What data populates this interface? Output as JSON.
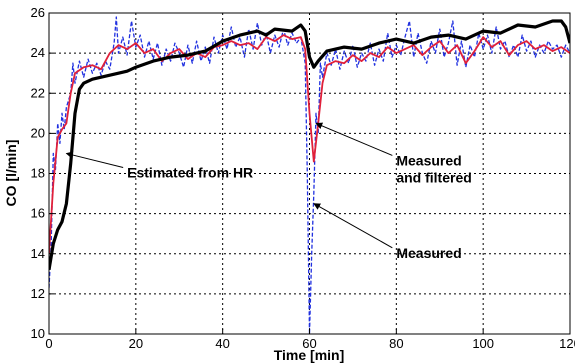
{
  "chart_data": {
    "type": "line",
    "title": "",
    "xlabel": "Time [min]",
    "ylabel": "CO [l/min]",
    "xlim": [
      0,
      120
    ],
    "ylim": [
      10,
      26
    ],
    "xticks": [
      "0",
      "20",
      "40",
      "60",
      "80",
      "100",
      "120"
    ],
    "yticks": [
      "10",
      "12",
      "14",
      "16",
      "18",
      "20",
      "22",
      "24",
      "26"
    ],
    "grid": true,
    "series": [
      {
        "name": "Estimated from HR",
        "color": "#000000",
        "style": "solid-thick",
        "points": [
          [
            0,
            13.2
          ],
          [
            1,
            14.5
          ],
          [
            2,
            15.2
          ],
          [
            3,
            15.6
          ],
          [
            4,
            16.5
          ],
          [
            5,
            18.5
          ],
          [
            6,
            21.0
          ],
          [
            7,
            22.2
          ],
          [
            8,
            22.5
          ],
          [
            10,
            22.7
          ],
          [
            12,
            22.8
          ],
          [
            14,
            22.9
          ],
          [
            16,
            23.0
          ],
          [
            18,
            23.1
          ],
          [
            20,
            23.3
          ],
          [
            24,
            23.6
          ],
          [
            28,
            23.8
          ],
          [
            32,
            23.9
          ],
          [
            36,
            24.1
          ],
          [
            40,
            24.6
          ],
          [
            44,
            24.9
          ],
          [
            48,
            25.1
          ],
          [
            50,
            24.9
          ],
          [
            52,
            25.2
          ],
          [
            56,
            25.1
          ],
          [
            58,
            25.4
          ],
          [
            59,
            25.1
          ],
          [
            60,
            23.8
          ],
          [
            61,
            23.3
          ],
          [
            62,
            23.6
          ],
          [
            64,
            24.1
          ],
          [
            68,
            24.3
          ],
          [
            72,
            24.2
          ],
          [
            76,
            24.5
          ],
          [
            80,
            24.7
          ],
          [
            84,
            24.5
          ],
          [
            88,
            24.8
          ],
          [
            92,
            24.9
          ],
          [
            96,
            24.7
          ],
          [
            100,
            25.1
          ],
          [
            104,
            25.0
          ],
          [
            108,
            25.4
          ],
          [
            112,
            25.3
          ],
          [
            116,
            25.6
          ],
          [
            118,
            25.6
          ],
          [
            119,
            25.3
          ],
          [
            120,
            24.5
          ]
        ]
      },
      {
        "name": "Measured and filtered",
        "color": "#e0203a",
        "style": "solid",
        "points": [
          [
            0,
            14.0
          ],
          [
            1,
            17.5
          ],
          [
            2,
            19.8
          ],
          [
            3,
            20.2
          ],
          [
            4,
            20.5
          ],
          [
            5,
            22.0
          ],
          [
            6,
            23.0
          ],
          [
            8,
            23.3
          ],
          [
            10,
            23.4
          ],
          [
            12,
            23.2
          ],
          [
            14,
            24.0
          ],
          [
            16,
            24.4
          ],
          [
            18,
            24.2
          ],
          [
            20,
            24.5
          ],
          [
            22,
            24.0
          ],
          [
            24,
            24.2
          ],
          [
            26,
            23.6
          ],
          [
            28,
            24.0
          ],
          [
            30,
            24.2
          ],
          [
            32,
            23.7
          ],
          [
            34,
            24.0
          ],
          [
            36,
            23.8
          ],
          [
            38,
            24.3
          ],
          [
            40,
            24.4
          ],
          [
            42,
            24.6
          ],
          [
            44,
            24.4
          ],
          [
            46,
            24.5
          ],
          [
            48,
            24.2
          ],
          [
            50,
            24.8
          ],
          [
            52,
            24.6
          ],
          [
            54,
            24.9
          ],
          [
            56,
            24.7
          ],
          [
            58,
            24.8
          ],
          [
            59,
            24.2
          ],
          [
            60,
            21.0
          ],
          [
            61,
            18.6
          ],
          [
            62,
            20.5
          ],
          [
            63,
            22.5
          ],
          [
            64,
            23.4
          ],
          [
            66,
            23.6
          ],
          [
            68,
            23.5
          ],
          [
            70,
            23.9
          ],
          [
            72,
            23.6
          ],
          [
            74,
            24.0
          ],
          [
            76,
            23.8
          ],
          [
            78,
            24.3
          ],
          [
            80,
            24.0
          ],
          [
            82,
            24.2
          ],
          [
            84,
            24.4
          ],
          [
            86,
            23.9
          ],
          [
            88,
            24.3
          ],
          [
            90,
            24.6
          ],
          [
            92,
            24.0
          ],
          [
            94,
            24.4
          ],
          [
            96,
            23.5
          ],
          [
            98,
            24.1
          ],
          [
            100,
            24.8
          ],
          [
            102,
            24.3
          ],
          [
            104,
            24.6
          ],
          [
            106,
            23.9
          ],
          [
            108,
            24.4
          ],
          [
            110,
            24.6
          ],
          [
            112,
            24.2
          ],
          [
            114,
            24.4
          ],
          [
            116,
            24.1
          ],
          [
            118,
            24.3
          ],
          [
            120,
            24.0
          ]
        ]
      },
      {
        "name": "Measured",
        "color": "#2030e0",
        "style": "dashed",
        "points": [
          [
            0,
            12.3
          ],
          [
            0.5,
            14.5
          ],
          [
            1,
            19.0
          ],
          [
            1.5,
            18.2
          ],
          [
            2,
            20.5
          ],
          [
            2.5,
            19.5
          ],
          [
            3,
            21.0
          ],
          [
            3.5,
            20.2
          ],
          [
            4,
            21.3
          ],
          [
            5,
            22.0
          ],
          [
            5.5,
            23.5
          ],
          [
            6,
            22.5
          ],
          [
            7,
            23.6
          ],
          [
            8,
            22.8
          ],
          [
            9,
            23.7
          ],
          [
            10,
            23.0
          ],
          [
            11,
            23.5
          ],
          [
            12,
            22.9
          ],
          [
            13,
            23.6
          ],
          [
            14,
            23.2
          ],
          [
            15,
            24.5
          ],
          [
            15.5,
            25.8
          ],
          [
            16,
            24.0
          ],
          [
            17,
            24.8
          ],
          [
            18,
            23.9
          ],
          [
            19,
            25.6
          ],
          [
            20,
            24.3
          ],
          [
            21,
            24.9
          ],
          [
            22,
            23.8
          ],
          [
            23,
            24.6
          ],
          [
            24,
            23.7
          ],
          [
            25,
            24.5
          ],
          [
            26,
            23.4
          ],
          [
            27,
            24.2
          ],
          [
            28,
            23.6
          ],
          [
            29,
            24.5
          ],
          [
            30,
            24.0
          ],
          [
            31,
            23.3
          ],
          [
            32,
            24.4
          ],
          [
            33,
            23.5
          ],
          [
            34,
            24.6
          ],
          [
            35,
            23.6
          ],
          [
            36,
            24.3
          ],
          [
            37,
            23.5
          ],
          [
            38,
            24.8
          ],
          [
            39,
            24.0
          ],
          [
            40,
            24.9
          ],
          [
            41,
            24.2
          ],
          [
            42,
            25.3
          ],
          [
            43,
            24.3
          ],
          [
            44,
            24.8
          ],
          [
            45,
            23.8
          ],
          [
            46,
            25.2
          ],
          [
            47,
            24.2
          ],
          [
            48,
            25.5
          ],
          [
            49,
            24.4
          ],
          [
            50,
            25.0
          ],
          [
            51,
            24.0
          ],
          [
            52,
            24.9
          ],
          [
            53,
            24.3
          ],
          [
            54,
            25.2
          ],
          [
            55,
            24.4
          ],
          [
            56,
            25.0
          ],
          [
            57,
            24.5
          ],
          [
            58,
            24.8
          ],
          [
            59,
            23.5
          ],
          [
            59.5,
            18.0
          ],
          [
            60,
            10.0
          ],
          [
            60.5,
            14.0
          ],
          [
            61,
            17.0
          ],
          [
            61.5,
            21.0
          ],
          [
            62,
            20.0
          ],
          [
            62.5,
            23.5
          ],
          [
            63,
            22.8
          ],
          [
            64,
            24.0
          ],
          [
            65,
            23.4
          ],
          [
            66,
            24.2
          ],
          [
            67,
            23.2
          ],
          [
            68,
            24.1
          ],
          [
            69,
            23.5
          ],
          [
            70,
            24.4
          ],
          [
            71,
            23.3
          ],
          [
            72,
            24.0
          ],
          [
            73,
            23.6
          ],
          [
            74,
            24.5
          ],
          [
            75,
            23.4
          ],
          [
            76,
            24.2
          ],
          [
            77,
            23.6
          ],
          [
            78,
            25.0
          ],
          [
            79,
            23.8
          ],
          [
            80,
            24.4
          ],
          [
            81,
            23.9
          ],
          [
            82,
            24.8
          ],
          [
            83,
            25.6
          ],
          [
            84,
            23.8
          ],
          [
            85,
            25.0
          ],
          [
            86,
            24.0
          ],
          [
            87,
            23.5
          ],
          [
            88,
            24.6
          ],
          [
            89,
            24.0
          ],
          [
            90,
            25.2
          ],
          [
            91,
            23.8
          ],
          [
            92,
            24.5
          ],
          [
            93,
            25.6
          ],
          [
            94,
            23.4
          ],
          [
            95,
            24.6
          ],
          [
            96,
            23.3
          ],
          [
            97,
            24.4
          ],
          [
            98,
            23.8
          ],
          [
            99,
            25.0
          ],
          [
            100,
            24.2
          ],
          [
            101,
            24.9
          ],
          [
            102,
            24.0
          ],
          [
            103,
            25.3
          ],
          [
            104,
            24.2
          ],
          [
            105,
            24.6
          ],
          [
            106,
            23.8
          ],
          [
            107,
            24.4
          ],
          [
            108,
            23.8
          ],
          [
            109,
            24.9
          ],
          [
            110,
            24.1
          ],
          [
            111,
            24.6
          ],
          [
            112,
            23.8
          ],
          [
            113,
            24.4
          ],
          [
            114,
            24.0
          ],
          [
            115,
            24.6
          ],
          [
            116,
            24.2
          ],
          [
            117,
            24.4
          ],
          [
            118,
            23.8
          ],
          [
            119,
            24.4
          ],
          [
            120,
            24.0
          ]
        ]
      }
    ],
    "annotations": [
      {
        "lines": [
          "Estimated from HR"
        ],
        "target": [
          4,
          19
        ],
        "text_at": [
          18,
          17.8
        ]
      },
      {
        "lines": [
          "Measured",
          "and filtered"
        ],
        "target": [
          61.5,
          20.5
        ],
        "text_at": [
          80,
          18.4
        ]
      },
      {
        "lines": [
          "Measured"
        ],
        "target": [
          61,
          16.5
        ],
        "text_at": [
          80,
          13.8
        ]
      }
    ]
  }
}
